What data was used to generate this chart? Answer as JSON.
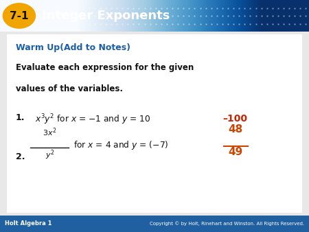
{
  "title_badge_text": "7-1",
  "title_text": "Integer Exponents",
  "header_bg_dark": "#1a5fa8",
  "header_bg_light": "#5ba3d9",
  "badge_bg": "#f0a500",
  "badge_text_color": "#111111",
  "title_text_color": "#ffffff",
  "section_title": "Warm Up(Add to Notes)",
  "section_title_color": "#1a5fa8",
  "body_text_color": "#111111",
  "item1_answer": "–100",
  "item1_answer_color": "#cc2200",
  "item2_answer_num": "48",
  "item2_answer_den": "49",
  "item2_answer_color": "#cc4400",
  "footer_left": "Holt Algebra 1",
  "footer_right": "Copyright © by Holt, Rinehart and Winston. All Rights Reserved.",
  "footer_bg": "#2060a0",
  "footer_text_color": "#ffffff",
  "content_bg": "#ffffff",
  "border_color": "#aaaaaa",
  "fig_width": 4.5,
  "fig_height": 3.38,
  "dpi": 100
}
